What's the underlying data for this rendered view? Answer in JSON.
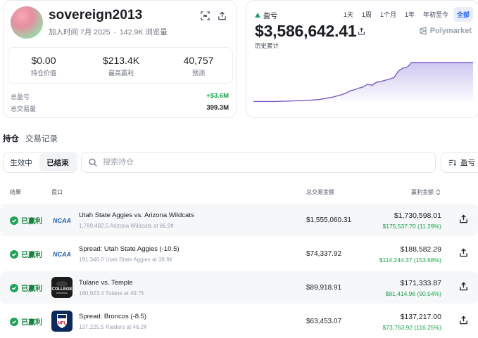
{
  "profile": {
    "username": "sovereign2013",
    "joined": "加入时间 7月 2025",
    "views": "142.9K 浏览量",
    "stats": [
      {
        "value": "$0.00",
        "label": "持仓价值"
      },
      {
        "value": "$213.4K",
        "label": "最高赢利"
      },
      {
        "value": "40,757",
        "label": "预测"
      }
    ],
    "total_pnl_label": "总盈亏",
    "total_pnl_value": "+$3.6M",
    "total_volume_label": "总交易量",
    "total_volume_value": "399.3M",
    "icons": [
      "scan-icon",
      "share-icon"
    ]
  },
  "pnl": {
    "label": "盈亏",
    "value": "$3,586,642.41",
    "sub": "历史累计",
    "brand": "Polymarket",
    "ranges": [
      "1天",
      "1周",
      "1个月",
      "1年",
      "年初至今",
      "全部"
    ],
    "active_range": "全部",
    "accent": "#7c5cc4"
  },
  "chart_data": {
    "type": "area",
    "title": "",
    "xlabel": "",
    "ylabel": "",
    "x": [
      0,
      5,
      10,
      15,
      20,
      25,
      30,
      33,
      36,
      38,
      40,
      42,
      44,
      46,
      48,
      50,
      52,
      54,
      56,
      58,
      60,
      62,
      64,
      66,
      68,
      70,
      72,
      74,
      76,
      78,
      80,
      85,
      90,
      95,
      100
    ],
    "values": [
      0.01,
      0.01,
      0.01,
      0.02,
      0.03,
      0.04,
      0.06,
      0.09,
      0.12,
      0.15,
      0.18,
      0.22,
      0.28,
      0.31,
      0.35,
      0.38,
      0.45,
      0.42,
      0.5,
      0.52,
      0.55,
      0.58,
      0.62,
      0.78,
      0.86,
      0.88,
      1.0,
      1.0,
      1.0,
      1.0,
      1.0,
      1.0,
      1.0,
      1.0,
      1.0
    ],
    "grid": false,
    "line_color": "#7c5cc4",
    "fill_color": "#c9c1f0"
  },
  "tabs": {
    "positions": "持仓",
    "activity": "交易记录"
  },
  "filters": {
    "active": "生效中",
    "closed": "已结束",
    "search_placeholder": "搜索持仓",
    "sort_label": "盈亏"
  },
  "table": {
    "headers": {
      "result": "结果",
      "market": "盘口",
      "volume": "总交易金额",
      "won": "赢利金额"
    },
    "rows": [
      {
        "status": "已赢利",
        "logo": "NCAA",
        "title": "Utah State Aggies vs. Arizona Wildcats",
        "sub": "1,789,482.5 Arizona Wildcats at 86.9¢",
        "volume": "$1,555,060.31",
        "value": "$1,730,598.01",
        "gain": "$175,537.70 (11.29%)"
      },
      {
        "status": "已赢利",
        "logo": "NCAA",
        "title": "Spread: Utah State Aggies (-10.5)",
        "sub": "191,346.0 Utah State Aggies at 38.9¢",
        "volume": "$74,337.92",
        "value": "$188,582.29",
        "gain": "$114,244.37 (153.68%)"
      },
      {
        "status": "已赢利",
        "logo": "COLLEGE",
        "title": "Tulane vs. Temple",
        "sub": "180,923.4 Tulane at 49.7¢",
        "volume": "$89,918.91",
        "value": "$171,333.87",
        "gain": "$81,414.96 (90.54%)"
      },
      {
        "status": "已赢利",
        "logo": "NFL",
        "title": "Spread: Broncos (-8.5)",
        "sub": "137,225.5 Raiders at 46.2¢",
        "volume": "$63,453.07",
        "value": "$137,217.00",
        "gain": "$73,763.92 (116.25%)"
      }
    ]
  }
}
